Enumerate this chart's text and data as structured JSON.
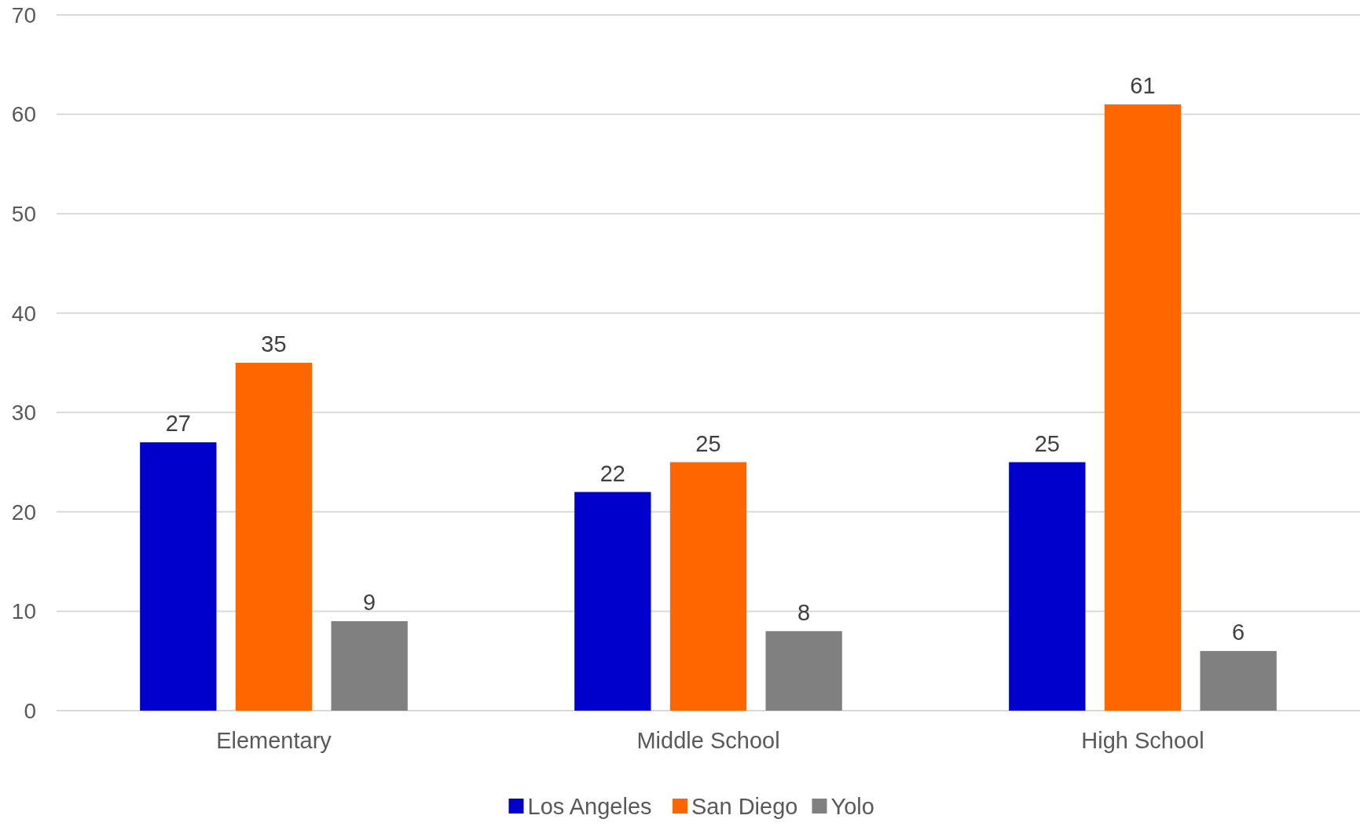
{
  "chart_data": {
    "type": "bar",
    "categories": [
      "Elementary",
      "Middle School",
      "High School"
    ],
    "series": [
      {
        "name": "Los Angeles",
        "color": "#0000cc",
        "values": [
          27,
          22,
          25
        ]
      },
      {
        "name": "San Diego",
        "color": "#ff6600",
        "values": [
          35,
          25,
          61
        ]
      },
      {
        "name": "Yolo",
        "color": "#808080",
        "values": [
          9,
          8,
          6
        ]
      }
    ],
    "ylim": [
      0,
      70
    ],
    "yticks": [
      0,
      10,
      20,
      30,
      40,
      50,
      60,
      70
    ],
    "grid": "y",
    "data_labels": true,
    "legend": "bottom"
  }
}
